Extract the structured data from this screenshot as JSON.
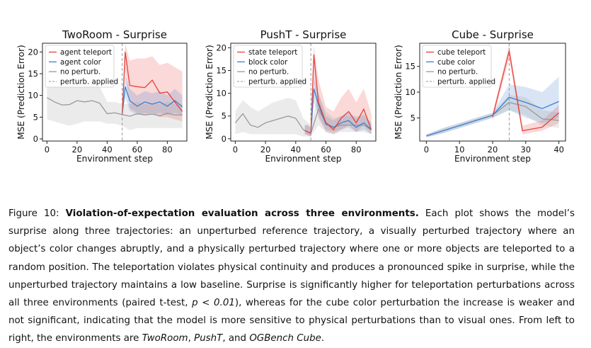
{
  "chart_data": [
    {
      "type": "line",
      "title": "TwoRoom - Surprise",
      "xlabel": "Environment step",
      "ylabel": "MSE (Prediction Error)",
      "xlim": [
        -3,
        93
      ],
      "ylim": [
        -0.5,
        22
      ],
      "xticks": [
        0,
        20,
        40,
        60,
        80
      ],
      "yticks": [
        0,
        5,
        10,
        15,
        20
      ],
      "perturbation_step": 50,
      "legend_position": "upper left",
      "series": [
        {
          "name": "agent teleport",
          "color": "#e8403a",
          "x": [
            50,
            52,
            55,
            60,
            65,
            70,
            75,
            80,
            85,
            90
          ],
          "y": [
            5.6,
            20.0,
            12.3,
            12.0,
            11.8,
            13.5,
            10.5,
            10.8,
            8.5,
            6.3
          ],
          "lower": [
            5.0,
            15.5,
            7.0,
            6.0,
            5.5,
            6.0,
            5.0,
            5.0,
            4.5,
            4.0
          ],
          "upper": [
            6.5,
            22.0,
            18.0,
            18.5,
            18.5,
            19.0,
            17.0,
            17.5,
            16.5,
            15.5
          ]
        },
        {
          "name": "agent color",
          "color": "#3f7fcf",
          "x": [
            50,
            52,
            55,
            60,
            65,
            70,
            75,
            80,
            85,
            90
          ],
          "y": [
            5.6,
            12.0,
            8.8,
            7.5,
            8.5,
            8.0,
            8.5,
            7.5,
            8.8,
            7.4
          ],
          "lower": [
            5.0,
            9.5,
            6.5,
            5.5,
            6.0,
            5.5,
            6.0,
            5.5,
            6.0,
            5.5
          ],
          "upper": [
            6.5,
            14.5,
            11.5,
            10.0,
            11.0,
            10.5,
            11.0,
            10.0,
            11.5,
            10.0
          ]
        },
        {
          "name": "no perturb.",
          "color": "#999999",
          "x": [
            0,
            5,
            10,
            15,
            20,
            25,
            30,
            35,
            40,
            45,
            50,
            55,
            60,
            65,
            70,
            75,
            80,
            85,
            90
          ],
          "y": [
            9.5,
            8.5,
            7.8,
            7.9,
            8.8,
            8.5,
            8.8,
            8.2,
            5.8,
            6.0,
            5.6,
            5.2,
            5.8,
            5.5,
            5.7,
            5.3,
            5.9,
            5.5,
            5.5
          ],
          "lower": [
            4.5,
            4.0,
            3.5,
            3.0,
            3.5,
            4.0,
            4.0,
            4.0,
            3.5,
            3.5,
            3.0,
            2.0,
            2.5,
            2.5,
            2.5,
            2.5,
            2.5,
            2.5,
            2.5
          ],
          "upper": [
            14.5,
            12.5,
            12.0,
            12.0,
            13.0,
            12.5,
            13.0,
            12.0,
            8.5,
            8.5,
            8.0,
            8.0,
            8.5,
            8.0,
            8.0,
            8.0,
            8.5,
            8.0,
            8.0
          ]
        }
      ]
    },
    {
      "type": "line",
      "title": "PushT - Surprise",
      "xlabel": "Environment step",
      "ylabel": "MSE (Prediction Error)",
      "xlim": [
        -3,
        93
      ],
      "ylim": [
        -0.5,
        21
      ],
      "xticks": [
        0,
        20,
        40,
        60,
        80
      ],
      "yticks": [
        0,
        5,
        10,
        15,
        20
      ],
      "perturbation_step": 50,
      "legend_position": "upper left",
      "series": [
        {
          "name": "state teleport",
          "color": "#e8403a",
          "x": [
            46,
            48,
            50,
            52,
            55,
            60,
            65,
            70,
            75,
            80,
            85,
            90
          ],
          "y": [
            1.8,
            1.5,
            1.2,
            18.5,
            8.0,
            3.5,
            2.0,
            4.5,
            6.0,
            3.5,
            6.5,
            2.0
          ],
          "lower": [
            1.0,
            0.8,
            0.5,
            13.0,
            4.5,
            1.5,
            1.0,
            2.0,
            3.0,
            1.5,
            3.0,
            1.0
          ],
          "upper": [
            3.0,
            3.0,
            2.5,
            20.5,
            13.0,
            7.0,
            6.0,
            9.0,
            11.0,
            8.0,
            11.0,
            5.5
          ]
        },
        {
          "name": "block color",
          "color": "#3f7fcf",
          "x": [
            46,
            48,
            50,
            52,
            55,
            60,
            65,
            70,
            75,
            80,
            85,
            90
          ],
          "y": [
            1.8,
            1.5,
            1.2,
            11.0,
            7.5,
            3.2,
            2.5,
            3.5,
            4.0,
            2.5,
            3.5,
            2.0
          ],
          "lower": [
            1.0,
            0.8,
            0.5,
            8.0,
            5.0,
            2.0,
            1.5,
            2.0,
            2.5,
            1.5,
            2.0,
            1.0
          ],
          "upper": [
            3.0,
            3.0,
            2.5,
            13.5,
            10.0,
            5.0,
            4.0,
            5.0,
            6.0,
            4.5,
            5.5,
            3.5
          ]
        },
        {
          "name": "no perturb.",
          "color": "#999999",
          "x": [
            0,
            5,
            10,
            15,
            20,
            25,
            30,
            35,
            40,
            45,
            50,
            55,
            60,
            65,
            70,
            75,
            80,
            85,
            90
          ],
          "y": [
            3.5,
            5.5,
            3.0,
            2.5,
            3.5,
            4.0,
            4.5,
            5.0,
            4.5,
            2.0,
            1.2,
            6.5,
            3.5,
            2.5,
            3.0,
            3.0,
            3.0,
            3.0,
            2.0
          ],
          "lower": [
            1.0,
            1.5,
            1.0,
            1.0,
            1.0,
            1.0,
            1.0,
            1.0,
            1.0,
            0.5,
            0.5,
            3.0,
            1.5,
            1.0,
            1.5,
            1.5,
            1.5,
            1.5,
            1.0
          ],
          "upper": [
            6.0,
            8.5,
            7.0,
            6.0,
            7.0,
            8.0,
            8.5,
            9.0,
            8.5,
            4.5,
            3.0,
            10.0,
            6.0,
            4.5,
            5.0,
            5.0,
            5.0,
            5.0,
            3.5
          ]
        }
      ]
    },
    {
      "type": "line",
      "title": "Cube - Surprise",
      "xlabel": "Environment step",
      "ylabel": "MSE (Prediction Error)",
      "xlim": [
        -2,
        42
      ],
      "ylim": [
        0.5,
        19.5
      ],
      "xticks": [
        0,
        10,
        20,
        30,
        40
      ],
      "yticks": [
        5,
        10,
        15
      ],
      "perturbation_step": 25,
      "legend_position": "upper left",
      "series": [
        {
          "name": "cube teleport",
          "color": "#e8403a",
          "x": [
            20,
            25,
            29,
            35,
            40
          ],
          "y": [
            5.2,
            18.0,
            2.5,
            3.2,
            6.0
          ],
          "lower": [
            4.5,
            16.5,
            1.8,
            2.5,
            4.0
          ],
          "upper": [
            6.0,
            19.2,
            3.5,
            4.5,
            7.5
          ]
        },
        {
          "name": "cube color",
          "color": "#3f7fcf",
          "x": [
            0,
            5,
            10,
            15,
            20,
            25,
            30,
            35,
            40
          ],
          "y": [
            1.5,
            2.5,
            3.5,
            4.5,
            5.5,
            9.0,
            8.0,
            6.8,
            8.2
          ],
          "lower": [
            1.2,
            2.0,
            3.0,
            4.0,
            5.0,
            6.5,
            5.0,
            4.0,
            5.0
          ],
          "upper": [
            1.8,
            3.0,
            4.0,
            5.0,
            6.0,
            11.5,
            11.0,
            10.0,
            13.0
          ]
        },
        {
          "name": "no perturb.",
          "color": "#999999",
          "x": [
            0,
            5,
            10,
            15,
            20,
            25,
            30,
            35,
            40
          ],
          "y": [
            1.5,
            2.5,
            3.5,
            4.5,
            5.5,
            8.0,
            7.2,
            4.8,
            4.5
          ],
          "lower": [
            1.2,
            2.0,
            3.0,
            4.0,
            5.0,
            6.5,
            5.5,
            3.5,
            3.0
          ],
          "upper": [
            1.8,
            3.0,
            4.0,
            5.0,
            6.0,
            9.5,
            9.0,
            6.5,
            6.0
          ]
        },
        {
          "name": "perturb. applied",
          "color": "#aaaaaa",
          "style": "dashed-vertical"
        }
      ]
    }
  ],
  "legend_entries": [
    [
      "agent teleport",
      "agent color",
      "no perturb.",
      "perturb. applied"
    ],
    [
      "state teleport",
      "block color",
      "no perturb.",
      "perturb. applied"
    ],
    [
      "cube teleport",
      "cube color",
      "no perturb.",
      "perturb. applied"
    ]
  ],
  "caption": {
    "label": "Figure 10:",
    "bold": "Violation-of-expectation evaluation across three environments.",
    "text1": "Each plot shows the model’s surprise along three trajectories: an unperturbed reference trajectory, a visually perturbed trajectory where an object’s color changes abruptly, and a physically perturbed trajectory where one or more objects are teleported to a random position. The teleportation violates physical continuity and produces a pronounced spike in surprise, while the unperturbed trajectory maintains a low baseline. Surprise is significantly higher for teleportation perturbations across all three environments (paired t-test, ",
    "pvalue": "p < 0.01",
    "text2": "), whereas for the cube color perturbation the increase is weaker and not significant, indicating that the model is more sensitive to physical perturbations than to visual ones. From left to right, the environments are ",
    "env1": "TwoRoom",
    "sep1": ", ",
    "env2": "PushT",
    "sep2": ", and ",
    "env3": "OGBench Cube",
    "end": "."
  }
}
